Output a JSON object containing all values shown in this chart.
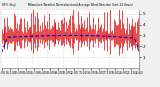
{
  "title": "Milwaukee Weather Normalized and Average Wind Direction (Last 24 Hours)",
  "subtitle": "MPH (Avg)",
  "bg_color": "#f0f0f0",
  "plot_bg_color": "#ffffff",
  "bar_color": "#dd0000",
  "line_color": "#0000cc",
  "grid_color": "#bbbbbb",
  "n_points": 144,
  "y_min": 0,
  "y_max": 5,
  "y_ticks": [
    1,
    2,
    3,
    4,
    5
  ],
  "seed": 42
}
